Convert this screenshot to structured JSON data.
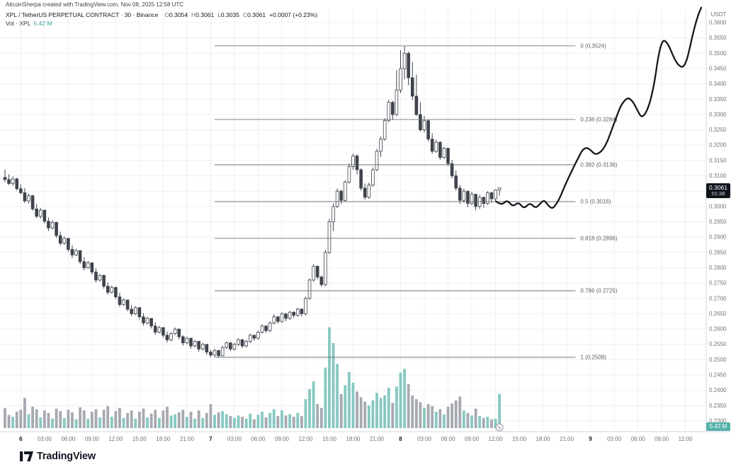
{
  "meta": {
    "attribution": "AltcoinSherpa created with TradingView.com, Nov 08, 2025 12:58 UTC"
  },
  "legend": {
    "symbol_line": "XPL / TetherUS PERPETUAL CONTRACT · 30 · Binance",
    "ohlc": {
      "o_label": "O",
      "o": "0.3054",
      "h_label": "H",
      "h": "0.3061",
      "l_label": "L",
      "l": "0.3035",
      "c_label": "C",
      "c": "0.3061",
      "change": "+0.0007 (+0.23%)"
    },
    "volume": {
      "label": "Vol · XPL",
      "value": "5.42 M"
    }
  },
  "axis": {
    "currency": "USDT",
    "price_label": "0.3061",
    "countdown": "01:38",
    "volume_label": "5.42 M"
  },
  "footer": {
    "brand": "TradingView"
  },
  "colors": {
    "background": "#ffffff",
    "grid": "#eef0f4",
    "axis_text": "#70737c",
    "candle": "#3f434c",
    "candle_up_fill": "#ffffff",
    "volume_up": "#87c8c2",
    "volume_down": "#a6a9b0",
    "volume_accent": "#3aa49c",
    "fib_line": "#5c5f66",
    "projection": "#15171c",
    "badge_bg": "#11141c",
    "badge_volume_bg": "#55b2aa"
  },
  "chart_data": {
    "type": "candlestick",
    "title": "XPL / TetherUS PERPETUAL CONTRACT · 30 · Binance",
    "interval_minutes": 30,
    "exchange": "Binance",
    "last_price": 0.3061,
    "volume_unit": "M",
    "y_axis": {
      "min": 0.23,
      "max": 0.36,
      "step": 0.005,
      "unit": "USDT"
    },
    "x_axis": {
      "labels": [
        [
          4,
          "6"
        ],
        [
          10,
          "03:00"
        ],
        [
          16,
          "06:00"
        ],
        [
          22,
          "09:00"
        ],
        [
          28,
          "12:00"
        ],
        [
          34,
          "15:00"
        ],
        [
          40,
          "18:00"
        ],
        [
          46,
          "21:00"
        ],
        [
          52,
          "7"
        ],
        [
          58,
          "03:00"
        ],
        [
          64,
          "06:00"
        ],
        [
          70,
          "09:00"
        ],
        [
          76,
          "12:00"
        ],
        [
          82,
          "15:00"
        ],
        [
          88,
          "18:00"
        ],
        [
          94,
          "21:00"
        ],
        [
          100,
          "8"
        ],
        [
          106,
          "03:00"
        ],
        [
          112,
          "06:00"
        ],
        [
          118,
          "09:00"
        ],
        [
          124,
          "12:00"
        ],
        [
          130,
          "15:00"
        ],
        [
          136,
          "18:00"
        ],
        [
          142,
          "21:00"
        ],
        [
          148,
          "9"
        ],
        [
          154,
          "03:00"
        ],
        [
          160,
          "06:00"
        ],
        [
          166,
          "09:00"
        ],
        [
          172,
          "12:00"
        ]
      ]
    },
    "fib_retracement": {
      "start_index": 53,
      "end_index": 144.2,
      "levels": [
        {
          "level": "0",
          "price": 0.3524,
          "label": "0 (0.3524)"
        },
        {
          "level": "0.236",
          "price": 0.3284,
          "label": "0.236 (0.3284)"
        },
        {
          "level": "0.382",
          "price": 0.3136,
          "label": "0.382 (0.3136)"
        },
        {
          "level": "0.5",
          "price": 0.3016,
          "label": "0.5 (0.3016)"
        },
        {
          "level": "0.618",
          "price": 0.2896,
          "label": "0.618 (0.2896)"
        },
        {
          "level": "0.786",
          "price": 0.2725,
          "label": "0.786 (0.2725)"
        },
        {
          "level": "1",
          "price": 0.2508,
          "label": "1 (0.2508)"
        }
      ]
    },
    "candles": [
      [
        0.3095,
        0.312,
        0.308,
        0.3088,
        3.2
      ],
      [
        0.3088,
        0.3105,
        0.307,
        0.3075,
        2.1
      ],
      [
        0.3075,
        0.3098,
        0.3068,
        0.309,
        1.8
      ],
      [
        0.309,
        0.3094,
        0.3052,
        0.3058,
        2.6
      ],
      [
        0.3058,
        0.3072,
        0.304,
        0.3045,
        2.9
      ],
      [
        0.3045,
        0.306,
        0.3012,
        0.3018,
        4.8
      ],
      [
        0.3018,
        0.3042,
        0.301,
        0.3035,
        2.2
      ],
      [
        0.3035,
        0.3038,
        0.2986,
        0.2992,
        3.4
      ],
      [
        0.2992,
        0.3008,
        0.2962,
        0.2968,
        3.0
      ],
      [
        0.2968,
        0.2995,
        0.296,
        0.2988,
        1.7
      ],
      [
        0.2988,
        0.299,
        0.2944,
        0.2952,
        2.8
      ],
      [
        0.2952,
        0.2964,
        0.292,
        0.293,
        2.4
      ],
      [
        0.293,
        0.2955,
        0.2925,
        0.2948,
        1.5
      ],
      [
        0.2948,
        0.295,
        0.2898,
        0.2905,
        3.1
      ],
      [
        0.2905,
        0.2918,
        0.2872,
        0.288,
        2.7
      ],
      [
        0.288,
        0.2902,
        0.2875,
        0.2896,
        1.6
      ],
      [
        0.2896,
        0.2898,
        0.2852,
        0.286,
        2.9
      ],
      [
        0.286,
        0.2874,
        0.2832,
        0.2842,
        2.5
      ],
      [
        0.2842,
        0.2862,
        0.2838,
        0.2856,
        1.4
      ],
      [
        0.2856,
        0.2858,
        0.2812,
        0.282,
        3.3
      ],
      [
        0.282,
        0.2835,
        0.2792,
        0.28,
        2.8
      ],
      [
        0.28,
        0.2822,
        0.2796,
        0.2816,
        1.5
      ],
      [
        0.2816,
        0.2818,
        0.2778,
        0.2786,
        2.6
      ],
      [
        0.2786,
        0.2798,
        0.2752,
        0.276,
        3.0
      ],
      [
        0.276,
        0.278,
        0.2755,
        0.2775,
        1.7
      ],
      [
        0.2775,
        0.2778,
        0.2732,
        0.274,
        2.9
      ],
      [
        0.274,
        0.2752,
        0.2712,
        0.272,
        3.5
      ],
      [
        0.272,
        0.2742,
        0.2716,
        0.2736,
        1.8
      ],
      [
        0.2736,
        0.2738,
        0.2698,
        0.2705,
        2.7
      ],
      [
        0.2705,
        0.2718,
        0.2672,
        0.268,
        3.2
      ],
      [
        0.268,
        0.27,
        0.2676,
        0.2695,
        1.6
      ],
      [
        0.2695,
        0.2696,
        0.2658,
        0.2665,
        2.4
      ],
      [
        0.2665,
        0.2678,
        0.2642,
        0.265,
        2.8
      ],
      [
        0.265,
        0.2675,
        0.2646,
        0.267,
        1.5
      ],
      [
        0.267,
        0.2672,
        0.2632,
        0.264,
        2.6
      ],
      [
        0.264,
        0.2652,
        0.2612,
        0.262,
        3.1
      ],
      [
        0.262,
        0.264,
        0.2615,
        0.2635,
        1.7
      ],
      [
        0.2635,
        0.2636,
        0.2602,
        0.261,
        2.3
      ],
      [
        0.261,
        0.2622,
        0.2582,
        0.259,
        2.9
      ],
      [
        0.259,
        0.261,
        0.2586,
        0.2605,
        1.6
      ],
      [
        0.2605,
        0.2606,
        0.2572,
        0.258,
        2.8
      ],
      [
        0.258,
        0.2592,
        0.2556,
        0.2565,
        3.4
      ],
      [
        0.2565,
        0.259,
        0.256,
        0.2585,
        2.0
      ],
      [
        0.2585,
        0.2605,
        0.258,
        0.26,
        2.2
      ],
      [
        0.26,
        0.2602,
        0.2566,
        0.2575,
        2.5
      ],
      [
        0.2575,
        0.258,
        0.2546,
        0.2555,
        2.9
      ],
      [
        0.2555,
        0.2575,
        0.255,
        0.257,
        1.8
      ],
      [
        0.257,
        0.2572,
        0.2536,
        0.2545,
        2.6
      ],
      [
        0.2545,
        0.2565,
        0.254,
        0.256,
        1.5
      ],
      [
        0.256,
        0.2562,
        0.2526,
        0.2535,
        2.8
      ],
      [
        0.2535,
        0.2555,
        0.253,
        0.255,
        1.6
      ],
      [
        0.255,
        0.2552,
        0.2516,
        0.2525,
        2.4
      ],
      [
        0.2525,
        0.2532,
        0.2508,
        0.2515,
        3.8
      ],
      [
        0.2515,
        0.2535,
        0.251,
        0.253,
        2.1
      ],
      [
        0.253,
        0.2532,
        0.2509,
        0.2513,
        2.5
      ],
      [
        0.2513,
        0.2545,
        0.2511,
        0.254,
        2.7
      ],
      [
        0.254,
        0.256,
        0.2535,
        0.2555,
        2.2
      ],
      [
        0.2555,
        0.2558,
        0.2528,
        0.2535,
        1.9
      ],
      [
        0.2535,
        0.2555,
        0.253,
        0.255,
        1.6
      ],
      [
        0.255,
        0.257,
        0.2545,
        0.2565,
        2.0
      ],
      [
        0.2565,
        0.2568,
        0.2538,
        0.2545,
        1.8
      ],
      [
        0.2545,
        0.2565,
        0.254,
        0.256,
        1.5
      ],
      [
        0.256,
        0.2585,
        0.2555,
        0.258,
        2.3
      ],
      [
        0.258,
        0.2582,
        0.2562,
        0.257,
        1.4
      ],
      [
        0.257,
        0.2595,
        0.2565,
        0.259,
        2.1
      ],
      [
        0.259,
        0.2615,
        0.2585,
        0.261,
        2.6
      ],
      [
        0.261,
        0.2612,
        0.2588,
        0.2595,
        1.7
      ],
      [
        0.2595,
        0.2625,
        0.259,
        0.262,
        2.4
      ],
      [
        0.262,
        0.2648,
        0.2615,
        0.264,
        3.0
      ],
      [
        0.264,
        0.2642,
        0.2618,
        0.2625,
        1.9
      ],
      [
        0.2625,
        0.2655,
        0.262,
        0.265,
        2.8
      ],
      [
        0.265,
        0.2652,
        0.2626,
        0.2635,
        2.0
      ],
      [
        0.2635,
        0.266,
        0.263,
        0.2655,
        2.2
      ],
      [
        0.2655,
        0.2658,
        0.2636,
        0.2645,
        1.8
      ],
      [
        0.2645,
        0.267,
        0.264,
        0.2665,
        2.4
      ],
      [
        0.2665,
        0.2668,
        0.2642,
        0.265,
        1.9
      ],
      [
        0.265,
        0.2705,
        0.2645,
        0.27,
        4.6
      ],
      [
        0.27,
        0.2765,
        0.2695,
        0.276,
        6.2
      ],
      [
        0.276,
        0.2812,
        0.2755,
        0.2805,
        7.4
      ],
      [
        0.2805,
        0.2808,
        0.2762,
        0.277,
        3.8
      ],
      [
        0.277,
        0.2775,
        0.2738,
        0.2745,
        3.2
      ],
      [
        0.2745,
        0.2858,
        0.274,
        0.285,
        9.6
      ],
      [
        0.285,
        0.296,
        0.2845,
        0.295,
        16.0
      ],
      [
        0.295,
        0.301,
        0.292,
        0.3,
        13.5
      ],
      [
        0.3,
        0.3058,
        0.2995,
        0.305,
        10.2
      ],
      [
        0.305,
        0.3055,
        0.3008,
        0.302,
        5.4
      ],
      [
        0.302,
        0.3085,
        0.3015,
        0.308,
        6.8
      ],
      [
        0.308,
        0.314,
        0.3075,
        0.313,
        8.9
      ],
      [
        0.313,
        0.3172,
        0.312,
        0.3165,
        7.2
      ],
      [
        0.3165,
        0.317,
        0.3105,
        0.312,
        5.8
      ],
      [
        0.312,
        0.3125,
        0.3052,
        0.306,
        4.9
      ],
      [
        0.306,
        0.3075,
        0.3022,
        0.303,
        4.2
      ],
      [
        0.303,
        0.3078,
        0.3025,
        0.307,
        3.6
      ],
      [
        0.307,
        0.3128,
        0.3065,
        0.312,
        4.4
      ],
      [
        0.312,
        0.3188,
        0.3115,
        0.318,
        5.6
      ],
      [
        0.318,
        0.3228,
        0.3162,
        0.322,
        4.8
      ],
      [
        0.322,
        0.3288,
        0.3215,
        0.328,
        5.2
      ],
      [
        0.328,
        0.3348,
        0.3275,
        0.334,
        6.4
      ],
      [
        0.334,
        0.3345,
        0.3282,
        0.33,
        4.0
      ],
      [
        0.33,
        0.3445,
        0.3295,
        0.338,
        6.6
      ],
      [
        0.338,
        0.351,
        0.337,
        0.345,
        8.8
      ],
      [
        0.345,
        0.3524,
        0.3415,
        0.35,
        9.4
      ],
      [
        0.35,
        0.3506,
        0.3396,
        0.342,
        7.0
      ],
      [
        0.342,
        0.3472,
        0.3348,
        0.336,
        5.2
      ],
      [
        0.336,
        0.343,
        0.3296,
        0.33,
        4.6
      ],
      [
        0.33,
        0.334,
        0.3245,
        0.325,
        4.1
      ],
      [
        0.325,
        0.3295,
        0.3242,
        0.328,
        3.2
      ],
      [
        0.328,
        0.3285,
        0.3212,
        0.322,
        3.8
      ],
      [
        0.322,
        0.324,
        0.3172,
        0.318,
        3.5
      ],
      [
        0.318,
        0.3218,
        0.3175,
        0.321,
        2.6
      ],
      [
        0.321,
        0.3212,
        0.3152,
        0.316,
        3.0
      ],
      [
        0.316,
        0.3195,
        0.3155,
        0.319,
        2.2
      ],
      [
        0.319,
        0.3192,
        0.3132,
        0.314,
        3.4
      ],
      [
        0.314,
        0.3152,
        0.3092,
        0.31,
        3.9
      ],
      [
        0.31,
        0.3118,
        0.3052,
        0.306,
        4.4
      ],
      [
        0.306,
        0.307,
        0.3008,
        0.302,
        5.0
      ],
      [
        0.302,
        0.3058,
        0.3012,
        0.305,
        2.8
      ],
      [
        0.305,
        0.3052,
        0.2998,
        0.301,
        2.4
      ],
      [
        0.301,
        0.3048,
        0.3005,
        0.304,
        2.0
      ],
      [
        0.304,
        0.3042,
        0.2988,
        0.3,
        3.1
      ],
      [
        0.3,
        0.3038,
        0.2992,
        0.303,
        1.9
      ],
      [
        0.303,
        0.3032,
        0.2996,
        0.301,
        1.6
      ],
      [
        0.301,
        0.305,
        0.3005,
        0.3045,
        1.8
      ],
      [
        0.3045,
        0.3048,
        0.3012,
        0.3025,
        1.4
      ],
      [
        0.3025,
        0.3056,
        0.3018,
        0.3054,
        1.5
      ],
      [
        0.3054,
        0.3061,
        0.3035,
        0.3061,
        5.42
      ]
    ],
    "projection_line": [
      [
        124.1,
        0.3017
      ],
      [
        125.5,
        0.3003
      ],
      [
        126.9,
        0.3022
      ],
      [
        128.4,
        0.2999
      ],
      [
        129.8,
        0.3015
      ],
      [
        131.2,
        0.2992
      ],
      [
        132.7,
        0.3013
      ],
      [
        134.1,
        0.2994
      ],
      [
        135.2,
        0.3008
      ],
      [
        136.3,
        0.3022
      ],
      [
        137.3,
        0.3003
      ],
      [
        138.4,
        0.2992
      ],
      [
        139.5,
        0.301
      ],
      [
        140.6,
        0.3038
      ],
      [
        141.6,
        0.307
      ],
      [
        142.7,
        0.31
      ],
      [
        143.8,
        0.313
      ],
      [
        144.9,
        0.3158
      ],
      [
        145.9,
        0.3184
      ],
      [
        147.0,
        0.3193
      ],
      [
        148.1,
        0.3184
      ],
      [
        149.1,
        0.317
      ],
      [
        150.2,
        0.3174
      ],
      [
        151.3,
        0.3188
      ],
      [
        152.4,
        0.3216
      ],
      [
        153.4,
        0.3251
      ],
      [
        154.5,
        0.329
      ],
      [
        155.6,
        0.3327
      ],
      [
        156.7,
        0.3348
      ],
      [
        157.7,
        0.3355
      ],
      [
        158.8,
        0.3341
      ],
      [
        159.9,
        0.3313
      ],
      [
        160.9,
        0.329
      ],
      [
        162.0,
        0.3304
      ],
      [
        163.1,
        0.3341
      ],
      [
        164.2,
        0.3406
      ],
      [
        165.2,
        0.3494
      ],
      [
        166.0,
        0.3535
      ],
      [
        166.7,
        0.3544
      ],
      [
        167.8,
        0.3526
      ],
      [
        168.8,
        0.3494
      ],
      [
        169.9,
        0.3466
      ],
      [
        171.0,
        0.3454
      ],
      [
        171.7,
        0.3459
      ],
      [
        172.4,
        0.348
      ],
      [
        173.1,
        0.3517
      ],
      [
        173.8,
        0.3558
      ],
      [
        174.6,
        0.3598
      ],
      [
        175.3,
        0.3628
      ],
      [
        176.0,
        0.3649
      ]
    ]
  }
}
